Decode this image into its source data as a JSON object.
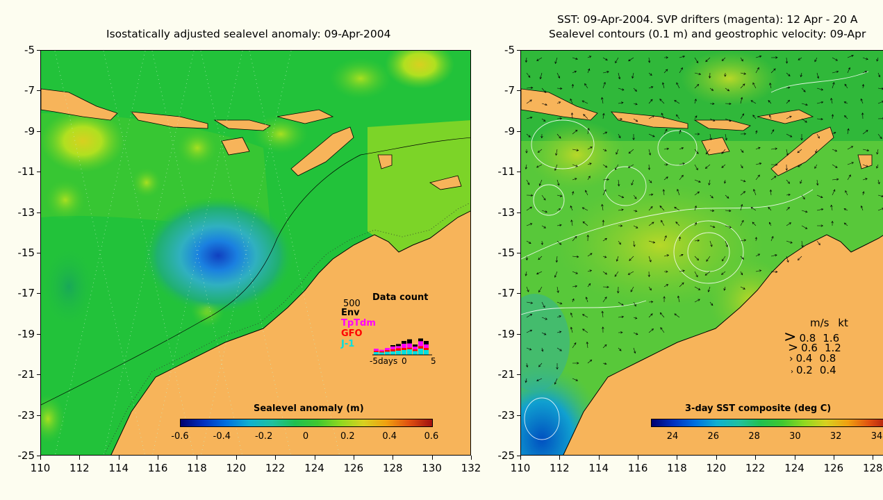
{
  "left_panel": {
    "title": "Isostatically adjusted sealevel anomaly: 09-Apr-2004",
    "y_ticks": [
      "-5",
      "-7",
      "-9",
      "-11",
      "-13",
      "-15",
      "-17",
      "-19",
      "-21",
      "-23",
      "-25"
    ],
    "x_ticks": [
      "110",
      "112",
      "114",
      "116",
      "118",
      "120",
      "122",
      "124",
      "126",
      "128",
      "130",
      "132"
    ],
    "colorbar": {
      "label": "Sealevel anomaly (m)",
      "ticks": [
        "-0.6",
        "-0.4",
        "-0.2",
        "0",
        "0.2",
        "0.4",
        "0.6"
      ]
    },
    "data_count": {
      "title": "Data count",
      "scale_label": "500",
      "legend": [
        {
          "name": "Env",
          "color": "#000000"
        },
        {
          "name": "TpTdm",
          "color": "#ff00ff"
        },
        {
          "name": "GFO",
          "color": "#ff0000"
        },
        {
          "name": "J-1",
          "color": "#00e0e0"
        }
      ],
      "x_label_left": "-5days",
      "x_label_mid": "0",
      "x_label_right": "5"
    }
  },
  "right_panel": {
    "title_line1": "SST: 09-Apr-2004. SVP drifters (magenta): 12 Apr - 20 A",
    "title_line2": "Sealevel contours (0.1 m) and geostrophic velocity: 09-Apr",
    "y_ticks": [
      "-5",
      "-7",
      "-9",
      "-11",
      "-13",
      "-15",
      "-17",
      "-19",
      "-21",
      "-23",
      "-25"
    ],
    "x_ticks": [
      "110",
      "112",
      "114",
      "116",
      "118",
      "120",
      "122",
      "124",
      "126",
      "128"
    ],
    "colorbar": {
      "label": "3-day SST composite (deg C)",
      "ticks": [
        "24",
        "26",
        "28",
        "30",
        "32",
        "34"
      ]
    },
    "velocity_legend": {
      "header_ms": "m/s",
      "header_kt": "kt",
      "rows": [
        {
          "ms": "0.8",
          "kt": "1.6"
        },
        {
          "ms": "0.6",
          "kt": "1.2"
        },
        {
          "ms": "0.4",
          "kt": "0.8"
        },
        {
          "ms": "0.2",
          "kt": "0.4"
        }
      ]
    }
  },
  "colors": {
    "land": "#f7b45a",
    "ocean_base": "#22c23a",
    "background": "#fdfdf0"
  }
}
